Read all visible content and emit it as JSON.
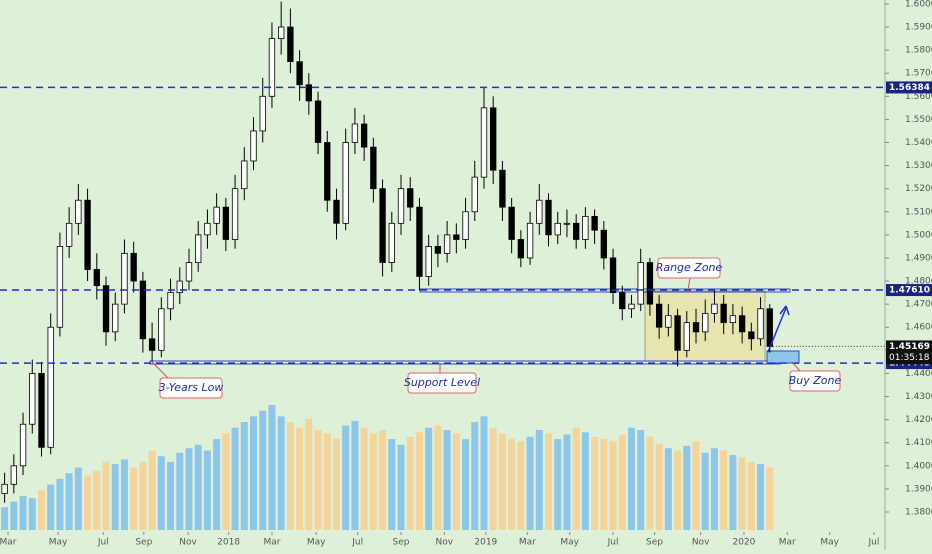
{
  "chart_data": {
    "type": "candlestick",
    "open": [
      1.388,
      1.392,
      1.4,
      1.418,
      1.44,
      1.408,
      1.46,
      1.495,
      1.505,
      1.515,
      1.485,
      1.478,
      1.458,
      1.47,
      1.492,
      1.48,
      1.455,
      1.45,
      1.468,
      1.475,
      1.48,
      1.488,
      1.5,
      1.505,
      1.512,
      1.498,
      1.52,
      1.532,
      1.545,
      1.56,
      1.585,
      1.59,
      1.575,
      1.565,
      1.558,
      1.54,
      1.515,
      1.505,
      1.54,
      1.548,
      1.538,
      1.52,
      1.488,
      1.505,
      1.52,
      1.512,
      1.482,
      1.495,
      1.492,
      1.5,
      1.498,
      1.51,
      1.525,
      1.555,
      1.528,
      1.512,
      1.498,
      1.49,
      1.505,
      1.515,
      1.5,
      1.505,
      1.505,
      1.498,
      1.508,
      1.502,
      1.49,
      1.475,
      1.468,
      1.47,
      1.488,
      1.47,
      1.46,
      1.465,
      1.45,
      1.462,
      1.458,
      1.466,
      1.47,
      1.462,
      1.465,
      1.458,
      1.455,
      1.468
    ],
    "high": [
      1.397,
      1.405,
      1.423,
      1.446,
      1.445,
      1.466,
      1.501,
      1.512,
      1.522,
      1.52,
      1.492,
      1.482,
      1.475,
      1.498,
      1.497,
      1.484,
      1.462,
      1.473,
      1.481,
      1.486,
      1.494,
      1.506,
      1.511,
      1.518,
      1.516,
      1.526,
      1.538,
      1.551,
      1.568,
      1.592,
      1.601,
      1.598,
      1.58,
      1.57,
      1.562,
      1.545,
      1.52,
      1.546,
      1.555,
      1.552,
      1.542,
      1.524,
      1.51,
      1.526,
      1.525,
      1.516,
      1.5,
      1.5,
      1.506,
      1.505,
      1.516,
      1.532,
      1.564,
      1.56,
      1.532,
      1.516,
      1.502,
      1.51,
      1.522,
      1.518,
      1.51,
      1.511,
      1.509,
      1.512,
      1.511,
      1.506,
      1.494,
      1.478,
      1.474,
      1.494,
      1.49,
      1.474,
      1.47,
      1.468,
      1.467,
      1.468,
      1.472,
      1.476,
      1.474,
      1.47,
      1.469,
      1.462,
      1.473,
      1.47
    ],
    "low": [
      1.384,
      1.388,
      1.396,
      1.414,
      1.404,
      1.405,
      1.456,
      1.49,
      1.5,
      1.48,
      1.472,
      1.452,
      1.454,
      1.466,
      1.475,
      1.449,
      1.445,
      1.447,
      1.463,
      1.47,
      1.476,
      1.484,
      1.494,
      1.5,
      1.493,
      1.494,
      1.515,
      1.528,
      1.54,
      1.555,
      1.578,
      1.57,
      1.558,
      1.552,
      1.535,
      1.51,
      1.498,
      1.502,
      1.535,
      1.532,
      1.514,
      1.482,
      1.484,
      1.5,
      1.506,
      1.476,
      1.478,
      1.486,
      1.488,
      1.492,
      1.494,
      1.506,
      1.52,
      1.522,
      1.506,
      1.492,
      1.486,
      1.487,
      1.5,
      1.495,
      1.496,
      1.499,
      1.494,
      1.494,
      1.496,
      1.485,
      1.47,
      1.463,
      1.464,
      1.467,
      1.465,
      1.455,
      1.456,
      1.443,
      1.447,
      1.453,
      1.454,
      1.462,
      1.457,
      1.457,
      1.453,
      1.45,
      1.452,
      1.449
    ],
    "close": [
      1.392,
      1.4,
      1.418,
      1.44,
      1.408,
      1.46,
      1.495,
      1.505,
      1.515,
      1.485,
      1.478,
      1.458,
      1.47,
      1.492,
      1.48,
      1.455,
      1.45,
      1.468,
      1.475,
      1.48,
      1.488,
      1.5,
      1.505,
      1.512,
      1.498,
      1.52,
      1.532,
      1.545,
      1.56,
      1.585,
      1.59,
      1.575,
      1.565,
      1.558,
      1.54,
      1.515,
      1.505,
      1.54,
      1.548,
      1.538,
      1.52,
      1.488,
      1.505,
      1.52,
      1.512,
      1.482,
      1.495,
      1.492,
      1.5,
      1.498,
      1.51,
      1.525,
      1.555,
      1.528,
      1.512,
      1.498,
      1.49,
      1.505,
      1.515,
      1.5,
      1.505,
      1.505,
      1.498,
      1.508,
      1.502,
      1.49,
      1.475,
      1.468,
      1.47,
      1.488,
      1.47,
      1.46,
      1.465,
      1.45,
      1.462,
      1.458,
      1.466,
      1.47,
      1.462,
      1.465,
      1.458,
      1.455,
      1.468,
      1.45169
    ],
    "volume": [
      20,
      25,
      30,
      28,
      35,
      40,
      45,
      50,
      55,
      48,
      52,
      60,
      58,
      62,
      55,
      60,
      70,
      65,
      60,
      68,
      72,
      75,
      70,
      80,
      85,
      90,
      95,
      100,
      105,
      110,
      100,
      95,
      90,
      98,
      88,
      85,
      80,
      92,
      96,
      90,
      85,
      88,
      80,
      75,
      82,
      86,
      90,
      92,
      88,
      85,
      80,
      95,
      100,
      90,
      85,
      80,
      78,
      82,
      88,
      85,
      80,
      84,
      90,
      86,
      82,
      80,
      78,
      84,
      90,
      88,
      82,
      76,
      72,
      70,
      74,
      78,
      68,
      72,
      70,
      66,
      64,
      60,
      58,
      55
    ],
    "up_color": "#ffffff",
    "down_color": "#000000",
    "volume_up_color": "#8ec6ea",
    "volume_down_color": "#f3d49a",
    "level_color": "#1a2fd0",
    "xlim": [
      -0.5,
      95.5
    ],
    "ylim": [
      1.3722,
      1.6017
    ],
    "xticks": [
      {
        "value": 0.37,
        "label": "Mar"
      },
      {
        "value": 5.8,
        "label": "May"
      },
      {
        "value": 10.7,
        "label": "Jul"
      },
      {
        "value": 15.1,
        "label": "Sep"
      },
      {
        "value": 19.9,
        "label": "Nov"
      },
      {
        "value": 24.3,
        "label": "2018"
      },
      {
        "value": 29,
        "label": "Mar"
      },
      {
        "value": 33.8,
        "label": "May"
      },
      {
        "value": 38.3,
        "label": "Jul"
      },
      {
        "value": 43,
        "label": "Sep"
      },
      {
        "value": 47.7,
        "label": "Nov"
      },
      {
        "value": 52.2,
        "label": "2019"
      },
      {
        "value": 56.7,
        "label": "Mar"
      },
      {
        "value": 61.3,
        "label": "May"
      },
      {
        "value": 66,
        "label": "Jul"
      },
      {
        "value": 70.5,
        "label": "Sep"
      },
      {
        "value": 75.5,
        "label": "Nov"
      },
      {
        "value": 80.2,
        "label": "2020"
      },
      {
        "value": 84.9,
        "label": "Mar"
      },
      {
        "value": 89.5,
        "label": "May"
      },
      {
        "value": 94.3,
        "label": "Jul"
      }
    ],
    "yticks": [
      {
        "value": 1.38,
        "label": "1.38000"
      },
      {
        "value": 1.39,
        "label": "1.39000"
      },
      {
        "value": 1.4,
        "label": "1.40000"
      },
      {
        "value": 1.41,
        "label": "1.41000"
      },
      {
        "value": 1.42,
        "label": "1.42000"
      },
      {
        "value": 1.43,
        "label": "1.43000"
      },
      {
        "value": 1.44,
        "label": "1.44000"
      },
      {
        "value": 1.45,
        "label": "1.45000"
      },
      {
        "value": 1.46,
        "label": "1.46000"
      },
      {
        "value": 1.47,
        "label": "1.47000"
      },
      {
        "value": 1.48,
        "label": "1.48000"
      },
      {
        "value": 1.49,
        "label": "1.49000"
      },
      {
        "value": 1.5,
        "label": "1.50000"
      },
      {
        "value": 1.51,
        "label": "1.51000"
      },
      {
        "value": 1.52,
        "label": "1.52000"
      },
      {
        "value": 1.53,
        "label": "1.53000"
      },
      {
        "value": 1.54,
        "label": "1.54000"
      },
      {
        "value": 1.55,
        "label": "1.55000"
      },
      {
        "value": 1.56,
        "label": "1.56000"
      },
      {
        "value": 1.57,
        "label": "1.57000"
      },
      {
        "value": 1.58,
        "label": "1.58000"
      },
      {
        "value": 1.59,
        "label": "1.59000"
      },
      {
        "value": 1.6,
        "label": "1.60000"
      }
    ],
    "levels": [
      1.56384,
      {
        "value": 1.4761,
        "label": "1.47610"
      },
      1.44448
    ],
    "last_price": 1.45169,
    "countdown": "01:35:18",
    "annotations": [
      "Range Zone",
      "3-Years Low",
      "Support Level",
      "Buy Zone"
    ]
  }
}
